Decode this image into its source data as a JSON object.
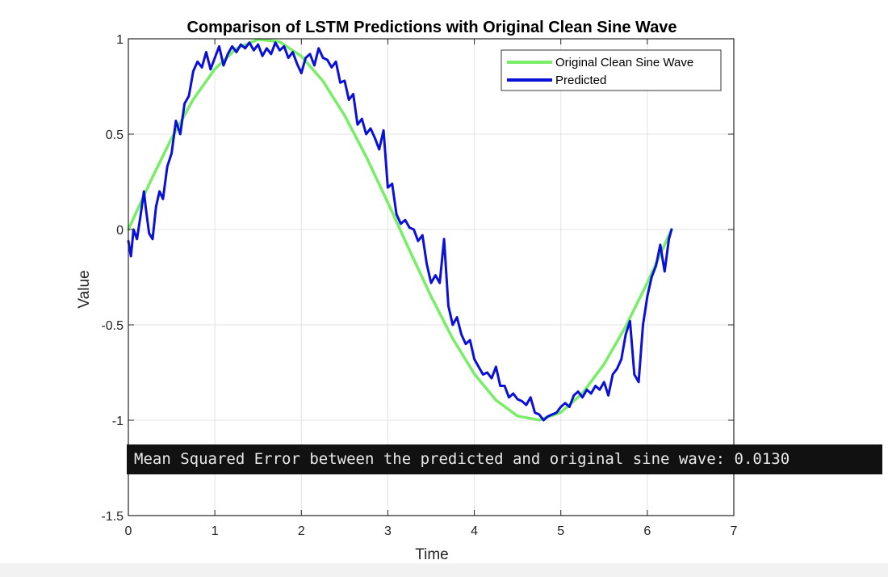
{
  "chart_data": {
    "type": "line",
    "title": "Comparison of LSTM Predictions with Original Clean Sine Wave",
    "xlabel": "Time",
    "ylabel": "Value",
    "xlim": [
      0,
      7
    ],
    "ylim": [
      -1.5,
      1
    ],
    "xticks": [
      0,
      1,
      2,
      3,
      4,
      5,
      6,
      7
    ],
    "xtick_labels": [
      "0",
      "1",
      "2",
      "3",
      "4",
      "5",
      "6",
      "7"
    ],
    "yticks": [
      -1.5,
      -1,
      -0.5,
      0,
      0.5,
      1
    ],
    "ytick_labels": [
      "-1.5",
      "-1",
      "-0.5",
      "0",
      "0.5",
      "1"
    ],
    "grid": true,
    "legend_position": "top-right",
    "series": [
      {
        "name": "Original Clean Sine Wave",
        "color": "#77ee66",
        "x": [
          0,
          0.25,
          0.5,
          0.75,
          1.0,
          1.25,
          1.5,
          1.75,
          2.0,
          2.25,
          2.5,
          2.75,
          3.0,
          3.25,
          3.5,
          3.75,
          4.0,
          4.25,
          4.5,
          4.75,
          5.0,
          5.25,
          5.5,
          5.75,
          6.0,
          6.28
        ],
        "y": [
          0,
          0.247,
          0.479,
          0.682,
          0.841,
          0.949,
          0.997,
          0.984,
          0.909,
          0.778,
          0.598,
          0.382,
          0.141,
          -0.108,
          -0.351,
          -0.572,
          -0.757,
          -0.895,
          -0.978,
          -0.999,
          -0.959,
          -0.859,
          -0.706,
          -0.508,
          -0.279,
          0
        ]
      },
      {
        "name": "Predicted",
        "color": "#0a10d8",
        "x": [
          0,
          0.03,
          0.06,
          0.1,
          0.14,
          0.18,
          0.2,
          0.24,
          0.28,
          0.32,
          0.36,
          0.4,
          0.45,
          0.5,
          0.55,
          0.6,
          0.65,
          0.7,
          0.75,
          0.8,
          0.85,
          0.9,
          0.95,
          1.0,
          1.05,
          1.1,
          1.15,
          1.2,
          1.25,
          1.3,
          1.35,
          1.4,
          1.45,
          1.5,
          1.55,
          1.6,
          1.65,
          1.7,
          1.75,
          1.8,
          1.85,
          1.9,
          1.95,
          2.0,
          2.05,
          2.1,
          2.15,
          2.2,
          2.25,
          2.3,
          2.35,
          2.4,
          2.45,
          2.5,
          2.55,
          2.6,
          2.65,
          2.7,
          2.75,
          2.8,
          2.85,
          2.9,
          2.95,
          3.0,
          3.05,
          3.1,
          3.15,
          3.2,
          3.25,
          3.3,
          3.35,
          3.4,
          3.45,
          3.5,
          3.55,
          3.6,
          3.65,
          3.7,
          3.75,
          3.8,
          3.85,
          3.9,
          3.95,
          4.0,
          4.05,
          4.1,
          4.15,
          4.2,
          4.25,
          4.3,
          4.35,
          4.4,
          4.45,
          4.5,
          4.55,
          4.6,
          4.65,
          4.7,
          4.75,
          4.8,
          4.85,
          4.9,
          4.95,
          5.0,
          5.05,
          5.1,
          5.15,
          5.2,
          5.25,
          5.3,
          5.35,
          5.4,
          5.45,
          5.5,
          5.55,
          5.6,
          5.65,
          5.7,
          5.75,
          5.8,
          5.85,
          5.9,
          5.95,
          6.0,
          6.05,
          6.1,
          6.15,
          6.2,
          6.25,
          6.28
        ],
        "y": [
          -0.06,
          -0.14,
          0.0,
          -0.05,
          0.07,
          0.2,
          0.12,
          -0.02,
          -0.05,
          0.12,
          0.2,
          0.16,
          0.33,
          0.4,
          0.57,
          0.5,
          0.66,
          0.7,
          0.83,
          0.88,
          0.85,
          0.93,
          0.84,
          0.9,
          0.96,
          0.86,
          0.92,
          0.96,
          0.93,
          0.97,
          0.95,
          0.98,
          0.94,
          0.97,
          0.91,
          0.95,
          0.92,
          0.98,
          0.94,
          0.96,
          0.9,
          0.93,
          0.87,
          0.82,
          0.9,
          0.92,
          0.86,
          0.95,
          0.9,
          0.89,
          0.85,
          0.88,
          0.77,
          0.78,
          0.68,
          0.71,
          0.55,
          0.58,
          0.5,
          0.53,
          0.48,
          0.42,
          0.52,
          0.22,
          0.24,
          0.08,
          0.03,
          0.05,
          0.01,
          0.0,
          -0.06,
          -0.03,
          -0.18,
          -0.28,
          -0.24,
          -0.28,
          -0.05,
          -0.4,
          -0.5,
          -0.46,
          -0.55,
          -0.6,
          -0.58,
          -0.68,
          -0.72,
          -0.76,
          -0.75,
          -0.78,
          -0.72,
          -0.82,
          -0.82,
          -0.88,
          -0.86,
          -0.89,
          -0.9,
          -0.92,
          -0.88,
          -0.96,
          -0.97,
          -1.0,
          -0.98,
          -0.97,
          -0.96,
          -0.93,
          -0.91,
          -0.93,
          -0.87,
          -0.85,
          -0.88,
          -0.84,
          -0.86,
          -0.82,
          -0.84,
          -0.8,
          -0.87,
          -0.76,
          -0.73,
          -0.68,
          -0.55,
          -0.48,
          -0.76,
          -0.8,
          -0.5,
          -0.35,
          -0.25,
          -0.19,
          -0.08,
          -0.22,
          -0.05,
          0.0
        ]
      }
    ]
  },
  "terminal": {
    "text": "Mean Squared Error between the predicted and original sine wave: 0.0130"
  }
}
